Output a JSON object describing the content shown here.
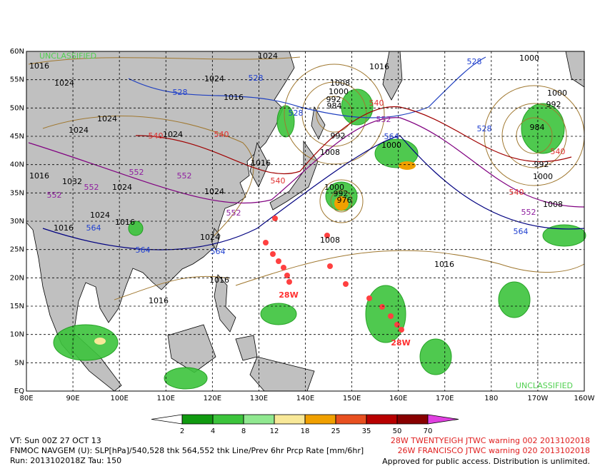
{
  "map": {
    "watermark_top": "UNCLASSIFIED",
    "watermark_bottom": "UNCLASSIFIED",
    "lat_labels": [
      "60N",
      "55N",
      "50N",
      "45N",
      "40N",
      "35N",
      "30N",
      "25N",
      "20N",
      "15N",
      "10N",
      "5N",
      "EQ"
    ],
    "lon_labels": [
      "80E",
      "90E",
      "100E",
      "110E",
      "120E",
      "130E",
      "140E",
      "150E",
      "160E",
      "170E",
      "180",
      "170W",
      "160W"
    ],
    "contour_labels": [
      "1024",
      "1016",
      "1024",
      "1024",
      "528",
      "528",
      "1016",
      "1024",
      "1024",
      "540",
      "1024",
      "540",
      "1016",
      "1008",
      "1000",
      "992",
      "984",
      "540",
      "528",
      "552",
      "992",
      "1008",
      "564",
      "1000",
      "528",
      "1000",
      "1000",
      "992",
      "984",
      "540",
      "992",
      "1000",
      "528",
      "1016",
      "552",
      "552",
      "1032",
      "552",
      "1024",
      "552",
      "1016",
      "540",
      "1024",
      "1000",
      "992",
      "976",
      "540",
      "1008",
      "552",
      "1024",
      "552",
      "1016",
      "1016",
      "564",
      "1024",
      "1008",
      "564",
      "564",
      "564",
      "1016",
      "1016",
      "1016"
    ],
    "storm_labels": [
      "28W",
      "28W"
    ]
  },
  "colorbar": {
    "ticks": [
      2,
      4,
      8,
      12,
      18,
      25,
      35,
      50,
      70
    ],
    "colors": [
      "#ffffff",
      "#109a10",
      "#3cc43c",
      "#90e890",
      "#f8e898",
      "#f0a000",
      "#e85020",
      "#b80000",
      "#880000",
      "#e040e0"
    ]
  },
  "footer": {
    "left": [
      "VT: Sun 00Z 27 OCT 13",
      "FNMOC NAVGEM (U): SLP[hPa]/540,528 thk 564,552 thk Line/Prev 6hr Prcp Rate [mm/6hr]",
      "Run: 2013102018Z Tau: 150"
    ],
    "right": [
      "28W TWENTYEIGH JTWC warning 002 2013102018",
      "26W FRANCISCO JTWC warning 020 2013102018"
    ],
    "notice": "Approved for public access. Distribution is unlimited."
  }
}
